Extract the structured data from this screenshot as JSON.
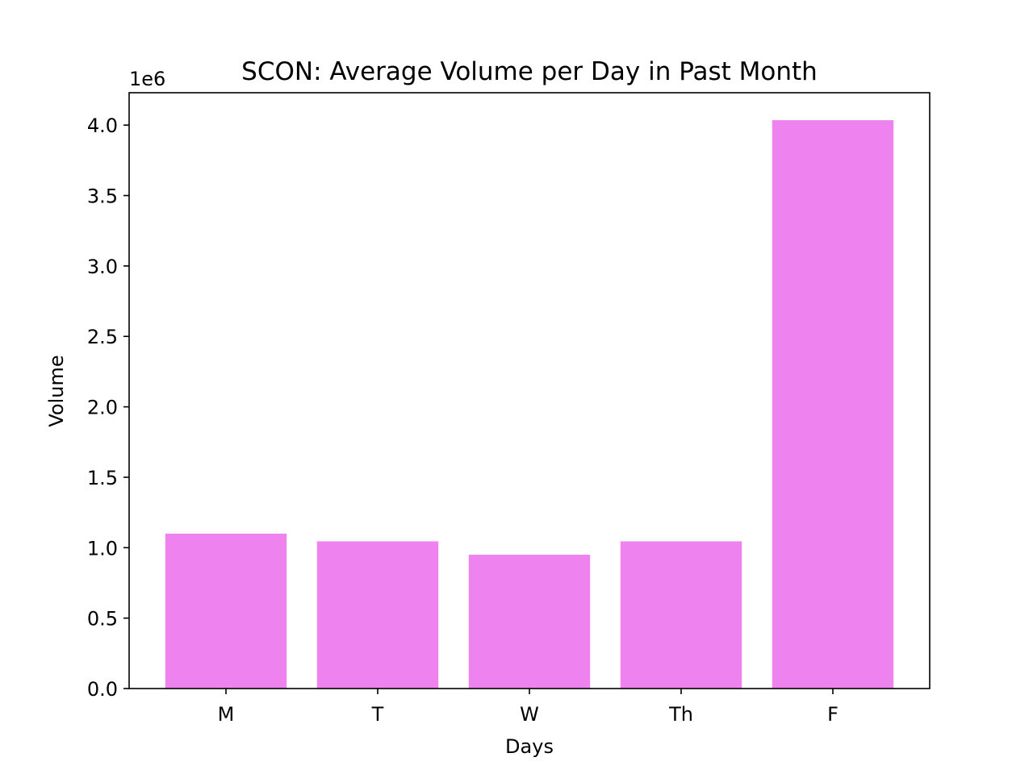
{
  "chart_data": {
    "type": "bar",
    "title": "SCON: Average Volume per Day in Past Month",
    "xlabel": "Days",
    "ylabel": "Volume",
    "y_offset_label": "1e6",
    "categories": [
      "M",
      "T",
      "W",
      "Th",
      "F"
    ],
    "values": [
      1100000,
      1045000,
      950000,
      1045000,
      4035000
    ],
    "ylim": [
      0,
      4230000
    ],
    "y_ticks": [
      0,
      500000,
      1000000,
      1500000,
      2000000,
      2500000,
      3000000,
      3500000,
      4000000
    ],
    "y_tick_labels": [
      "0.0",
      "0.5",
      "1.0",
      "1.5",
      "2.0",
      "2.5",
      "3.0",
      "3.5",
      "4.0"
    ],
    "bar_color": "#ee82ee",
    "grid": false,
    "legend": "none"
  }
}
